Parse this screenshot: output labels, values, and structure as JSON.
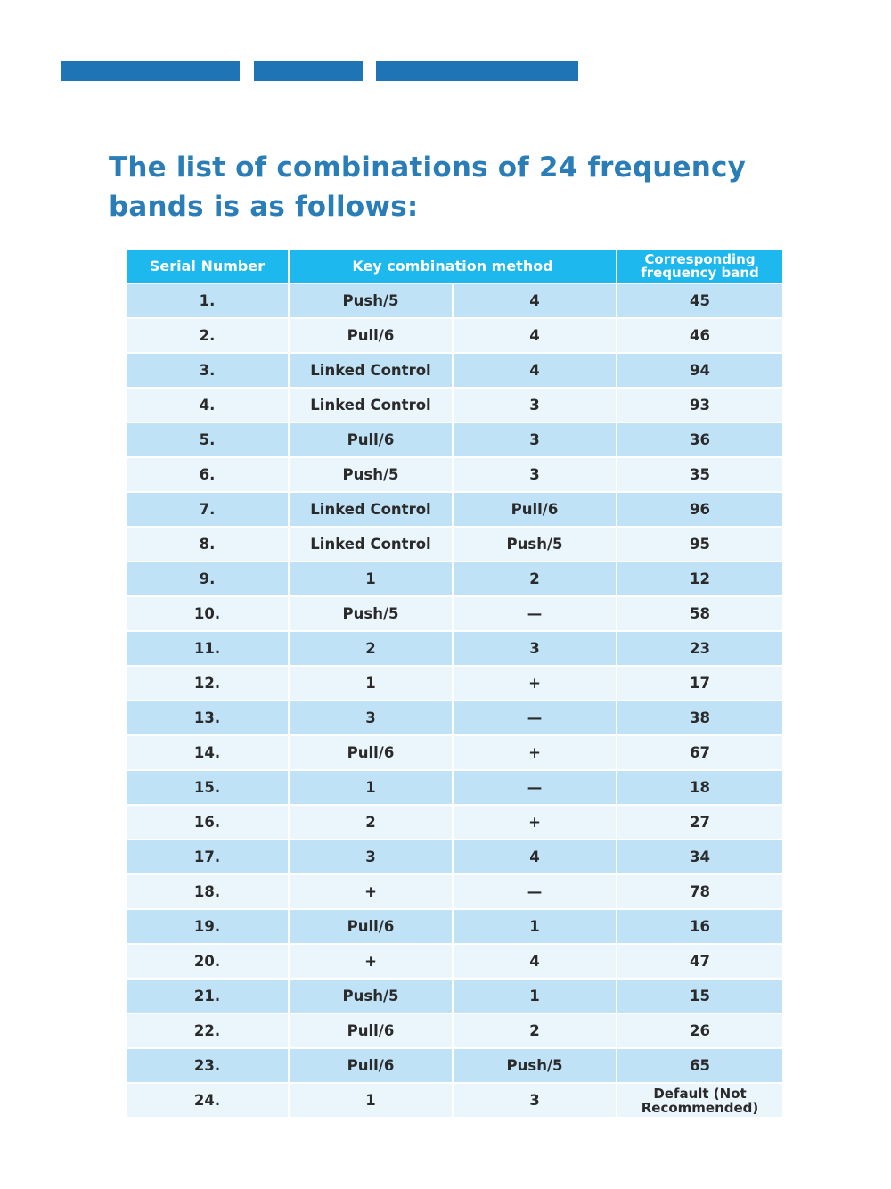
{
  "header_bars": [
    "bar-1",
    "bar-2",
    "bar-3"
  ],
  "title": "The list of combinations of 24 frequency bands is as follows:",
  "table": {
    "headers": {
      "serial": "Serial Number",
      "key_method": "Key combination method",
      "band": "Corresponding frequency band"
    },
    "rows": [
      {
        "serial": "1.",
        "key1": "Push/5",
        "key2": "4",
        "band": "45"
      },
      {
        "serial": "2.",
        "key1": "Pull/6",
        "key2": "4",
        "band": "46"
      },
      {
        "serial": "3.",
        "key1": "Linked Control",
        "key2": "4",
        "band": "94"
      },
      {
        "serial": "4.",
        "key1": "Linked Control",
        "key2": "3",
        "band": "93"
      },
      {
        "serial": "5.",
        "key1": "Pull/6",
        "key2": "3",
        "band": "36"
      },
      {
        "serial": "6.",
        "key1": "Push/5",
        "key2": "3",
        "band": "35"
      },
      {
        "serial": "7.",
        "key1": "Linked Control",
        "key2": "Pull/6",
        "band": "96"
      },
      {
        "serial": "8.",
        "key1": "Linked Control",
        "key2": "Push/5",
        "band": "95"
      },
      {
        "serial": "9.",
        "key1": "1",
        "key2": "2",
        "band": "12"
      },
      {
        "serial": "10.",
        "key1": "Push/5",
        "key2": "—",
        "band": "58"
      },
      {
        "serial": "11.",
        "key1": "2",
        "key2": "3",
        "band": "23"
      },
      {
        "serial": "12.",
        "key1": "1",
        "key2": "+",
        "band": "17"
      },
      {
        "serial": "13.",
        "key1": "3",
        "key2": "—",
        "band": "38"
      },
      {
        "serial": "14.",
        "key1": "Pull/6",
        "key2": "+",
        "band": "67"
      },
      {
        "serial": "15.",
        "key1": "1",
        "key2": "—",
        "band": "18"
      },
      {
        "serial": "16.",
        "key1": "2",
        "key2": "+",
        "band": "27"
      },
      {
        "serial": "17.",
        "key1": "3",
        "key2": "4",
        "band": "34"
      },
      {
        "serial": "18.",
        "key1": "+",
        "key2": "—",
        "band": "78"
      },
      {
        "serial": "19.",
        "key1": "Pull/6",
        "key2": "1",
        "band": "16"
      },
      {
        "serial": "20.",
        "key1": "+",
        "key2": "4",
        "band": "47"
      },
      {
        "serial": "21.",
        "key1": "Push/5",
        "key2": "1",
        "band": "15"
      },
      {
        "serial": "22.",
        "key1": "Pull/6",
        "key2": "2",
        "band": "26"
      },
      {
        "serial": "23.",
        "key1": "Pull/6",
        "key2": "Push/5",
        "band": "65"
      },
      {
        "serial": "24.",
        "key1": "1",
        "key2": "3",
        "band": "Default (Not Recommended)"
      }
    ]
  },
  "colors": {
    "bar_blue": "#1f74b5",
    "title_blue": "#2a7db6",
    "header_cyan": "#1cb8ee",
    "row_dark": "#bfe2f6",
    "row_light": "#eaf5fc"
  }
}
